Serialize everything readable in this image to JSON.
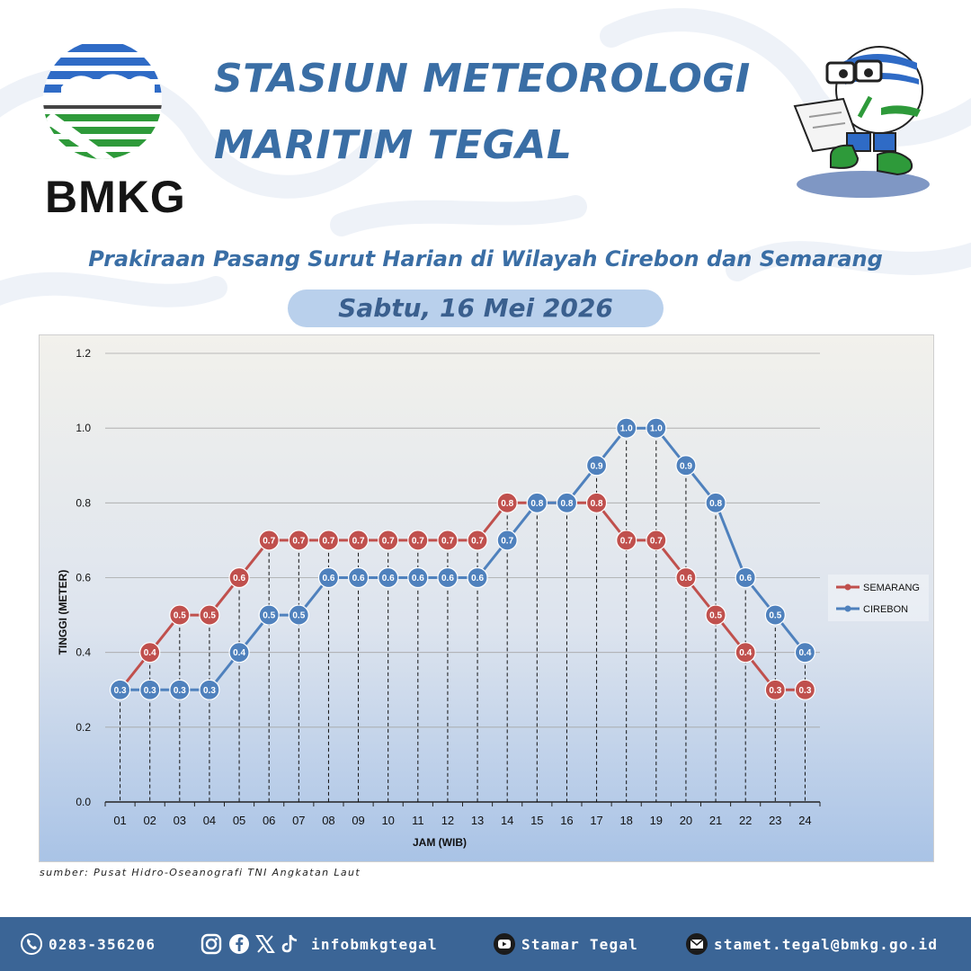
{
  "header": {
    "logo_text": "BMKG",
    "title_line1": "STASIUN METEOROLOGI",
    "title_line2": "MARITIM TEGAL",
    "subtitle": "Prakiraan Pasang Surut Harian di Wilayah Cirebon dan Semarang",
    "date": "Sabtu, 16 Mei 2026"
  },
  "source": "sumber: Pusat Hidro-Oseanografi TNI Angkatan Laut",
  "footer": {
    "phone": "0283-356206",
    "social": "infobmkgtegal",
    "youtube": "Stamar Tegal",
    "email": "stamet.tegal@bmkg.go.id",
    "icons": [
      "phone-icon",
      "instagram-icon",
      "facebook-icon",
      "x-icon",
      "tiktok-icon",
      "youtube-icon",
      "email-icon"
    ]
  },
  "colors": {
    "title": "#3a6ea5",
    "footer_bg": "#3b6596",
    "semarang": "#c0504d",
    "cirebon": "#4f81bd",
    "pill": "#b9d0ec"
  },
  "chart_data": {
    "type": "line",
    "title": "",
    "xlabel": "JAM (WIB)",
    "ylabel": "TINGGI (METER)",
    "categories": [
      "01",
      "02",
      "03",
      "04",
      "05",
      "06",
      "07",
      "08",
      "09",
      "10",
      "11",
      "12",
      "13",
      "14",
      "15",
      "16",
      "17",
      "18",
      "19",
      "20",
      "21",
      "22",
      "23",
      "24"
    ],
    "ylim": [
      0,
      1.2
    ],
    "yticks": [
      "0.0",
      "0.2",
      "0.4",
      "0.6",
      "0.8",
      "1.0",
      "1.2"
    ],
    "grid": true,
    "legend_position": "right",
    "series": [
      {
        "name": "SEMARANG",
        "color": "#c0504d",
        "values": [
          0.3,
          0.4,
          0.5,
          0.5,
          0.6,
          0.7,
          0.7,
          0.7,
          0.7,
          0.7,
          0.7,
          0.7,
          0.7,
          0.8,
          0.8,
          0.8,
          0.8,
          0.7,
          0.7,
          0.6,
          0.5,
          0.4,
          0.3,
          0.3
        ]
      },
      {
        "name": "CIREBON",
        "color": "#4f81bd",
        "values": [
          0.3,
          0.3,
          0.3,
          0.3,
          0.4,
          0.5,
          0.5,
          0.6,
          0.6,
          0.6,
          0.6,
          0.6,
          0.6,
          0.7,
          0.8,
          0.8,
          0.9,
          1.0,
          1.0,
          0.9,
          0.8,
          0.6,
          0.5,
          0.4
        ]
      }
    ]
  }
}
